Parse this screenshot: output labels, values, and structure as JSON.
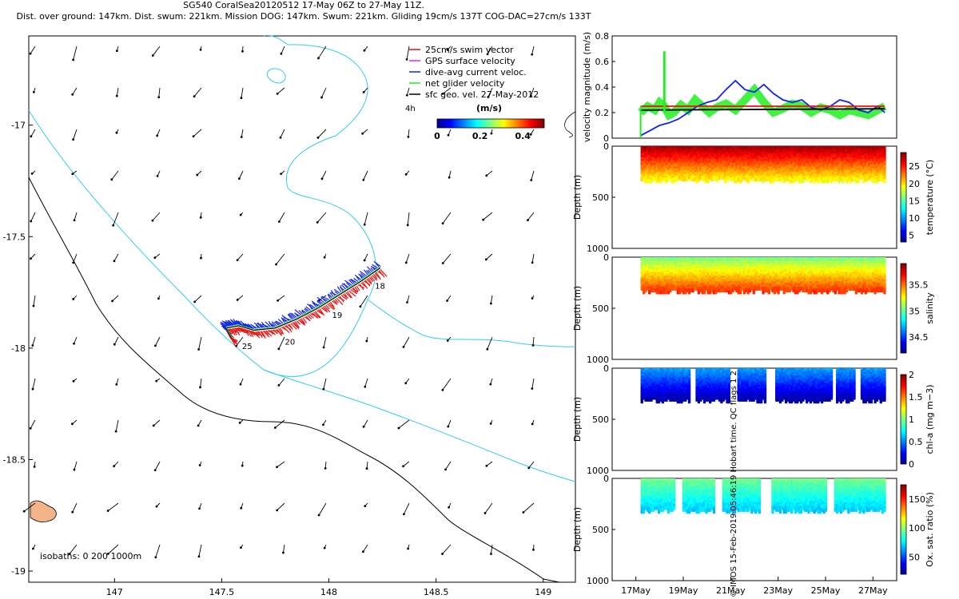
{
  "header": {
    "line1": "SG540 CoralSea20120512 17-May 06Z to 27-May 11Z.",
    "line2": "Dist. over ground: 147km. Dist. swum: 221km. Mission DOG: 147km. Swum: 221km. Gliding 19cm/s 137T COG-DAC=27cm/s 133T"
  },
  "credit": "© IMOS 15-Feb-2019 05:46:19 Hobart time. QC flags 1 2",
  "colors": {
    "coast_cyan": "#33ccee",
    "track_red": "#ee1111",
    "track_blue": "#1122ee",
    "velocity_green": "#22ee22",
    "land": "#f4b48a"
  },
  "chart_data": [
    {
      "type": "scatter",
      "name": "track-map",
      "xlabel": "",
      "ylabel": "",
      "xlim": [
        146.6,
        149.15
      ],
      "ylim": [
        -19.05,
        -16.6
      ],
      "xticks": [
        "147",
        "147.5",
        "148",
        "148.5",
        "149"
      ],
      "yticks": [
        "-17",
        "-17.5",
        "-18",
        "-18.5",
        "-19"
      ],
      "legend": {
        "placement": "top-right",
        "entries": [
          "25cm/s swim vector",
          "GPS surface velocity",
          "dive-avg current veloc.",
          "net glider velocity",
          "sfc geo. vel. 27-May-2012"
        ]
      },
      "vector_scale_label": "4h",
      "colorbar": {
        "label": "(m/s)",
        "ticks": [
          "0",
          "0.2",
          "0.4"
        ],
        "range": [
          0,
          0.5
        ]
      },
      "isobaths_label": "isobaths: 0   200  1000m",
      "day_labels": [
        {
          "text": "18",
          "lon": 148.2,
          "lat": -17.72
        },
        {
          "text": "19",
          "lon": 148.0,
          "lat": -17.85
        },
        {
          "text": "20",
          "lon": 147.78,
          "lat": -17.97
        },
        {
          "text": "25",
          "lon": 147.58,
          "lat": -17.99
        }
      ],
      "track": [
        [
          148.24,
          -17.64
        ],
        [
          148.15,
          -17.7
        ],
        [
          148.05,
          -17.76
        ],
        [
          147.95,
          -17.82
        ],
        [
          147.85,
          -17.87
        ],
        [
          147.75,
          -17.91
        ],
        [
          147.65,
          -17.92
        ],
        [
          147.58,
          -17.9
        ],
        [
          147.52,
          -17.91
        ],
        [
          147.55,
          -17.96
        ]
      ]
    },
    {
      "type": "line",
      "name": "velocity-magnitude",
      "ylabel": "velocity magnitude (m/s)",
      "ylim": [
        0,
        0.8
      ],
      "yticks": [
        "0",
        "0.2",
        "0.4",
        "0.6",
        "0.8"
      ],
      "xlim": [
        16,
        28
      ],
      "series": [
        {
          "color": "#22ee22",
          "x": [
            17.2,
            17.5,
            17.8,
            18.0,
            18.2,
            18.4,
            18.6,
            18.9,
            19.2,
            19.5,
            19.8,
            20.1,
            20.4,
            20.8,
            21.2,
            21.6,
            22.0,
            22.4,
            22.8,
            23.2,
            23.6,
            24.0,
            24.4,
            24.8,
            25.2,
            25.6,
            26.0,
            26.4,
            26.8,
            27.2,
            27.5
          ],
          "values": [
            0.2,
            0.25,
            0.22,
            0.28,
            0.25,
            0.18,
            0.2,
            0.26,
            0.22,
            0.3,
            0.25,
            0.2,
            0.24,
            0.27,
            0.22,
            0.3,
            0.38,
            0.28,
            0.2,
            0.23,
            0.27,
            0.25,
            0.2,
            0.24,
            0.22,
            0.18,
            0.22,
            0.2,
            0.18,
            0.22,
            0.25
          ]
        },
        {
          "color": "#1122ee",
          "x": [
            17.2,
            17.6,
            18.0,
            18.4,
            18.8,
            19.2,
            19.6,
            20.0,
            20.4,
            20.8,
            21.2,
            21.6,
            22.0,
            22.4,
            22.8,
            23.2,
            23.6,
            24.0,
            24.4,
            24.8,
            25.2,
            25.6,
            26.0,
            26.4,
            26.8,
            27.2,
            27.5
          ],
          "values": [
            0.02,
            0.06,
            0.1,
            0.12,
            0.15,
            0.2,
            0.25,
            0.28,
            0.3,
            0.38,
            0.45,
            0.38,
            0.36,
            0.42,
            0.35,
            0.3,
            0.28,
            0.3,
            0.24,
            0.22,
            0.25,
            0.3,
            0.28,
            0.22,
            0.2,
            0.25,
            0.2
          ]
        },
        {
          "color": "#000000",
          "x": [
            17.2,
            27.5
          ],
          "values": [
            0.22,
            0.23
          ]
        },
        {
          "color": "#ee1111",
          "x": [
            17.2,
            27.5
          ],
          "values": [
            0.25,
            0.25
          ]
        }
      ],
      "spike": {
        "x": 18.2,
        "value": 0.68
      }
    },
    {
      "type": "heatmap",
      "name": "temperature",
      "ylabel": "Depth (m)",
      "ylim": [
        0,
        1000
      ],
      "yticks": [
        "0",
        "500",
        "1000"
      ],
      "colorbar_label": "temperature (°C)",
      "colorbar_ticks": [
        "5",
        "10",
        "15",
        "20",
        "25"
      ],
      "crange": [
        3,
        29
      ],
      "profile_depth_max": 320,
      "surface_value": 28,
      "deep_value": 19
    },
    {
      "type": "heatmap",
      "name": "salinity",
      "ylabel": "Depth (m)",
      "ylim": [
        0,
        1000
      ],
      "yticks": [
        "0",
        "500",
        "1000"
      ],
      "colorbar_label": "salinity",
      "colorbar_ticks": [
        "34.5",
        "35",
        "35.5"
      ],
      "crange": [
        34.2,
        35.9
      ],
      "profile_depth_max": 320,
      "surface_value": 35.05,
      "deep_value": 35.6
    },
    {
      "type": "heatmap",
      "name": "chl-a",
      "ylabel": "Depth (m)",
      "ylim": [
        0,
        1000
      ],
      "yticks": [
        "0",
        "500",
        "1000"
      ],
      "colorbar_label": "chl-a (mg m−3)",
      "colorbar_ticks": [
        "0",
        "0.5",
        "1",
        "1.5",
        "2"
      ],
      "crange": [
        0,
        2
      ],
      "profile_depth_max": 300,
      "surface_value": 0.55,
      "deep_value": 0.05
    },
    {
      "type": "heatmap",
      "name": "oxygen",
      "ylabel": "Depth (m)",
      "ylim": [
        0,
        1000
      ],
      "yticks": [
        "0",
        "500",
        "1000"
      ],
      "xticks": [
        "17May",
        "19May",
        "21May",
        "23May",
        "25May",
        "27May"
      ],
      "colorbar_label": "Ox. sat. ratio (%)",
      "colorbar_ticks": [
        "50",
        "100",
        "150"
      ],
      "crange": [
        20,
        175
      ],
      "profile_depth_max": 300,
      "surface_value": 95,
      "deep_value": 70
    }
  ]
}
